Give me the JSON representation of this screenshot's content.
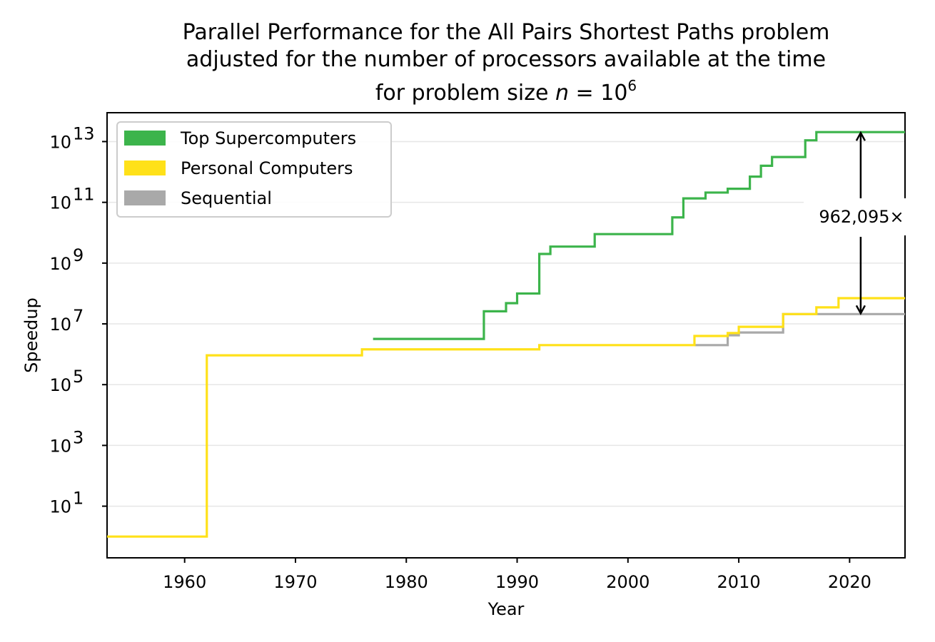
{
  "chart_data": {
    "type": "line",
    "title_lines": [
      "Parallel Performance for the All Pairs Shortest Paths problem",
      "adjusted for the number of processors available at the time"
    ],
    "title_n_line": {
      "prefix": "for problem size ",
      "var": "n",
      "eq": " = ",
      "base": "10",
      "exp": "6"
    },
    "xlabel": "Year",
    "ylabel": "Speedup",
    "xlim": [
      1953,
      2025
    ],
    "ylim_log10": [
      -0.7,
      13.95
    ],
    "y_scale": "log",
    "x_ticks": [
      1960,
      1970,
      1980,
      1990,
      2000,
      2010,
      2020
    ],
    "y_ticks": [
      {
        "value": 10,
        "base": "10",
        "exp": "1"
      },
      {
        "value": 1000,
        "base": "10",
        "exp": "3"
      },
      {
        "value": 100000,
        "base": "10",
        "exp": "5"
      },
      {
        "value": 10000000,
        "base": "10",
        "exp": "7"
      },
      {
        "value": 1000000000,
        "base": "10",
        "exp": "9"
      },
      {
        "value": 100000000000,
        "base": "10",
        "exp": "11"
      },
      {
        "value": 10000000000000,
        "base": "10",
        "exp": "13"
      }
    ],
    "grid": "y-major",
    "legend_position": "upper-left",
    "series": [
      {
        "name": "Top Supercomputers",
        "color": "#3cb44b",
        "step": "post",
        "points": [
          [
            1977,
            3200000.0
          ],
          [
            1987,
            26000000.0
          ],
          [
            1989,
            48000000.0
          ],
          [
            1990,
            100000000.0
          ],
          [
            1992,
            2000000000.0
          ],
          [
            1993,
            3500000000.0
          ],
          [
            1997,
            9000000000.0
          ],
          [
            2004,
            32000000000.0
          ],
          [
            2005,
            135000000000.0
          ],
          [
            2007,
            210000000000.0
          ],
          [
            2009,
            280000000000.0
          ],
          [
            2011,
            700000000000.0
          ],
          [
            2012,
            1600000000000.0
          ],
          [
            2013,
            3100000000000.0
          ],
          [
            2016,
            11000000000000.0
          ],
          [
            2017,
            20500000000000.0
          ],
          [
            2025,
            20500000000000.0
          ]
        ]
      },
      {
        "name": "Personal Computers",
        "color": "#ffe119",
        "step": "post",
        "points": [
          [
            1953,
            1
          ],
          [
            1962,
            920000.0
          ],
          [
            1976,
            1450000.0
          ],
          [
            1992,
            2000000.0
          ],
          [
            2006,
            4000000.0
          ],
          [
            2009,
            5000000.0
          ],
          [
            2010,
            8000000.0
          ],
          [
            2014,
            21000000.0
          ],
          [
            2017,
            35000000.0
          ],
          [
            2019,
            70000000.0
          ],
          [
            2025,
            70000000.0
          ]
        ]
      },
      {
        "name": "Sequential",
        "color": "#a9a9a9",
        "step": "post",
        "points": [
          [
            2006,
            2000000.0
          ],
          [
            2009,
            4200000.0
          ],
          [
            2010,
            5200000.0
          ],
          [
            2014,
            21000000.0
          ],
          [
            2025,
            21000000.0
          ]
        ]
      }
    ],
    "annotation": {
      "text": "962,095×",
      "x": 2021,
      "y_top": 20500000000000.0,
      "y_bottom": 21000000.0
    }
  }
}
